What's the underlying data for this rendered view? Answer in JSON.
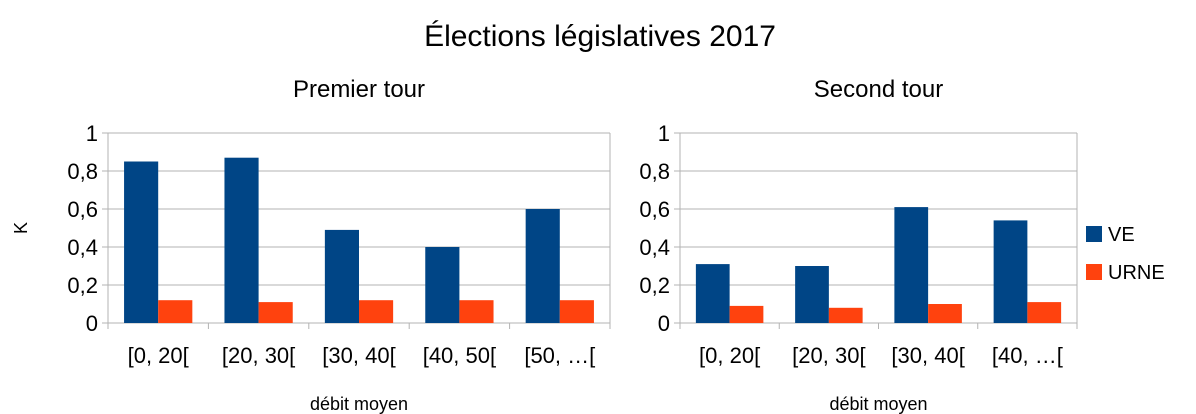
{
  "title": "Élections législatives 2017",
  "colors": {
    "VE": "#004586",
    "URNE": "#ff420e",
    "grid": "#b3b3b3"
  },
  "legend": {
    "placement": "right",
    "items": [
      "VE",
      "URNE"
    ]
  },
  "chart_data": [
    {
      "type": "bar",
      "title": "Premier tour",
      "xlabel": "débit moyen",
      "ylabel": "K",
      "ylim": [
        0,
        1
      ],
      "yticks": [
        "0",
        "0,2",
        "0,4",
        "0,6",
        "0,8",
        "1"
      ],
      "grid": true,
      "categories": [
        "[0, 20[",
        "[20, 30[",
        "[30, 40[",
        "[40, 50[",
        "[50, …["
      ],
      "series": [
        {
          "name": "VE",
          "values": [
            0.85,
            0.87,
            0.49,
            0.4,
            0.6
          ]
        },
        {
          "name": "URNE",
          "values": [
            0.12,
            0.11,
            0.12,
            0.12,
            0.12
          ]
        }
      ]
    },
    {
      "type": "bar",
      "title": "Second tour",
      "xlabel": "débit moyen",
      "ylabel": "",
      "ylim": [
        0,
        1
      ],
      "yticks": [
        "0",
        "0,2",
        "0,4",
        "0,6",
        "0,8",
        "1"
      ],
      "grid": true,
      "categories": [
        "[0, 20[",
        "[20, 30[",
        "[30, 40[",
        "[40, …["
      ],
      "series": [
        {
          "name": "VE",
          "values": [
            0.31,
            0.3,
            0.61,
            0.54
          ]
        },
        {
          "name": "URNE",
          "values": [
            0.09,
            0.08,
            0.1,
            0.11
          ]
        }
      ]
    }
  ]
}
